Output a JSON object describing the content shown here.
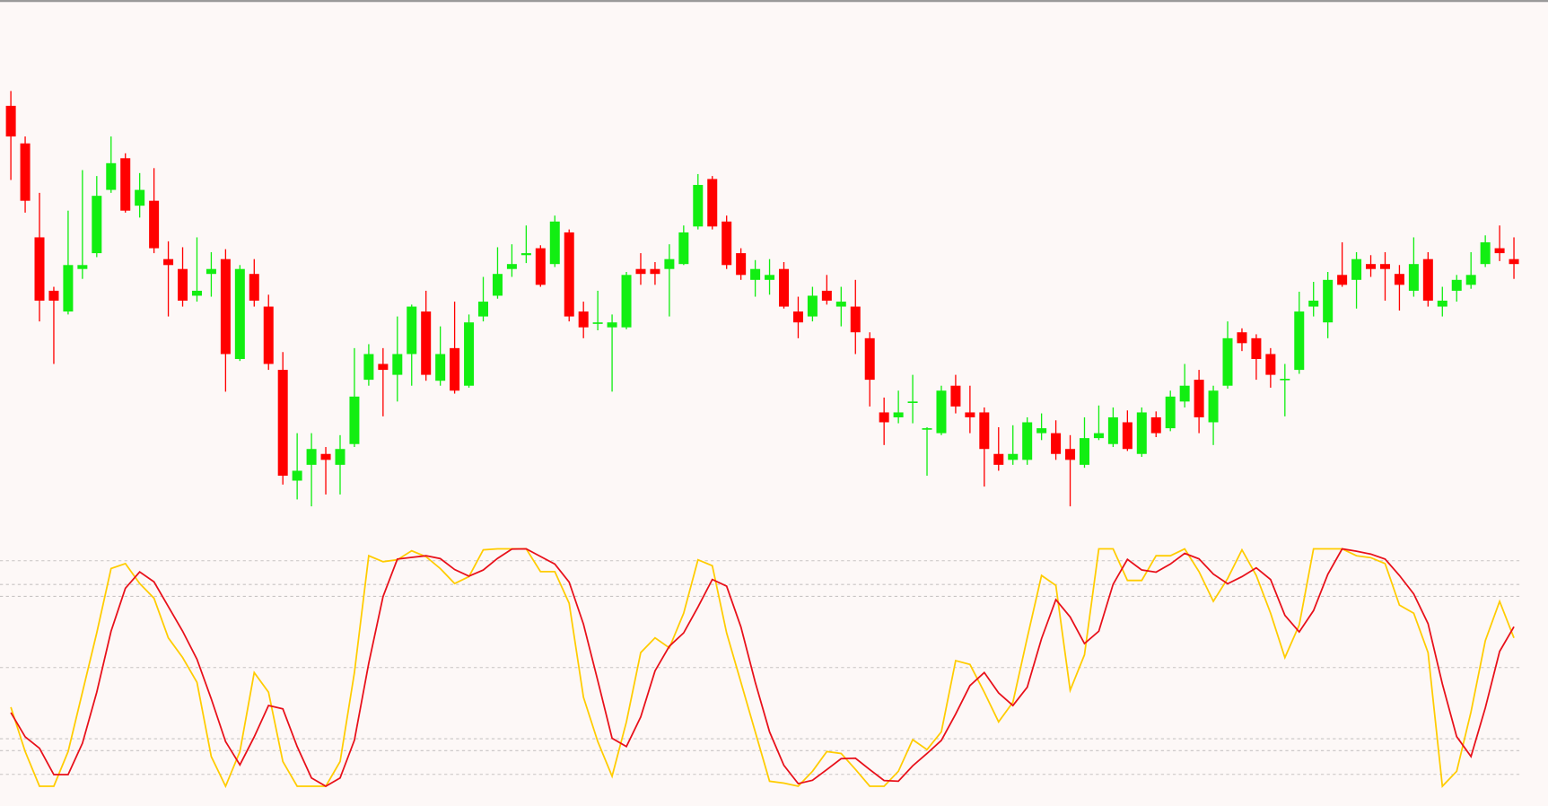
{
  "chart_data": [
    {
      "type": "candlestick",
      "up_color": "#12ee12",
      "down_color": "#ff0000",
      "ylim": [
        60,
        560
      ],
      "open": [
        493,
        455,
        360,
        306,
        285,
        328,
        344,
        408,
        440,
        392,
        397,
        338,
        328,
        301,
        323,
        338,
        237,
        323,
        290,
        226,
        114,
        130,
        141,
        130,
        151,
        216,
        232,
        221,
        242,
        285,
        215,
        248,
        210,
        280,
        301,
        328,
        342,
        349,
        333,
        365,
        285,
        274,
        269,
        269,
        328,
        328,
        328,
        333,
        371,
        419,
        376,
        344,
        317,
        317,
        328,
        285,
        280,
        306,
        290,
        290,
        258,
        183,
        178,
        194,
        167,
        162,
        210,
        183,
        183,
        141,
        135,
        135,
        162,
        162,
        146,
        130,
        157,
        151,
        173,
        141,
        178,
        167,
        194,
        216,
        173,
        210,
        264,
        258,
        242,
        216,
        226,
        290,
        274,
        322,
        317,
        333,
        333,
        323,
        306,
        338,
        290,
        306,
        312,
        333,
        349,
        338
      ],
      "high": [
        508,
        462,
        405,
        310,
        387,
        428,
        422,
        462,
        445,
        425,
        430,
        356,
        350,
        360,
        345,
        348,
        332,
        338,
        302,
        244,
        162,
        162,
        148,
        160,
        248,
        252,
        248,
        280,
        292,
        306,
        270,
        295,
        282,
        320,
        350,
        353,
        372,
        352,
        382,
        368,
        295,
        306,
        282,
        325,
        344,
        335,
        353,
        372,
        424,
        422,
        382,
        349,
        337,
        338,
        335,
        300,
        310,
        322,
        310,
        317,
        264,
        198,
        205,
        221,
        168,
        210,
        221,
        210,
        188,
        168,
        170,
        178,
        182,
        175,
        160,
        178,
        190,
        188,
        185,
        188,
        184,
        205,
        232,
        226,
        210,
        275,
        268,
        262,
        248,
        232,
        305,
        315,
        325,
        355,
        345,
        342,
        345,
        332,
        360,
        345,
        310,
        322,
        345,
        362,
        372,
        360
      ],
      "low": [
        418,
        385,
        275,
        232,
        282,
        318,
        340,
        405,
        385,
        380,
        344,
        280,
        290,
        295,
        300,
        204,
        235,
        290,
        226,
        110,
        95,
        88,
        100,
        100,
        148,
        210,
        179,
        194,
        210,
        215,
        210,
        202,
        208,
        275,
        298,
        320,
        334,
        310,
        330,
        275,
        258,
        266,
        204,
        267,
        312,
        312,
        280,
        332,
        368,
        368,
        328,
        317,
        300,
        302,
        288,
        258,
        275,
        292,
        270,
        242,
        189,
        150,
        172,
        172,
        119,
        160,
        182,
        162,
        108,
        124,
        130,
        130,
        155,
        135,
        88,
        127,
        155,
        148,
        144,
        138,
        158,
        164,
        188,
        162,
        150,
        207,
        245,
        216,
        208,
        179,
        222,
        280,
        258,
        310,
        288,
        320,
        296,
        286,
        300,
        290,
        280,
        295,
        308,
        330,
        336,
        318
      ],
      "close": [
        462,
        397,
        296,
        296,
        332,
        332,
        402,
        435,
        387,
        408,
        349,
        332,
        296,
        306,
        328,
        242,
        328,
        296,
        232,
        119,
        124,
        146,
        135,
        146,
        199,
        242,
        226,
        242,
        290,
        221,
        242,
        205,
        274,
        295,
        323,
        333,
        344,
        312,
        376,
        280,
        269,
        274,
        274,
        322,
        323,
        323,
        338,
        365,
        413,
        371,
        332,
        322,
        328,
        322,
        290,
        274,
        301,
        296,
        295,
        264,
        216,
        173,
        183,
        194,
        167,
        205,
        189,
        178,
        146,
        130,
        141,
        173,
        167,
        141,
        135,
        157,
        162,
        178,
        146,
        183,
        162,
        199,
        210,
        178,
        205,
        258,
        253,
        237,
        221,
        217,
        285,
        296,
        317,
        312,
        338,
        328,
        328,
        312,
        333,
        296,
        296,
        317,
        322,
        355,
        344,
        333
      ]
    },
    {
      "type": "line",
      "ylim": [
        0,
        100
      ],
      "levels": [
        5,
        15,
        20,
        50,
        80,
        85,
        95
      ],
      "series": [
        {
          "color": "#ffcc00",
          "values": [
            33.3,
            14.6,
            0,
            0,
            14.6,
            39.6,
            64.6,
            91.7,
            93.8,
            85.4,
            79.2,
            62.5,
            54.2,
            43.8,
            12.5,
            0,
            14.6,
            47.9,
            39.6,
            10.4,
            0,
            0,
            0,
            10.4,
            47.9,
            97.1,
            94.6,
            95.4,
            99.2,
            96.7,
            91.7,
            85.4,
            88.3,
            99.6,
            100,
            100,
            100,
            90.4,
            90.4,
            77.1,
            37.5,
            18.8,
            4.2,
            27.1,
            56.3,
            62.5,
            58.3,
            72.9,
            95.4,
            92.9,
            64.6,
            43.8,
            22.9,
            2.1,
            1.3,
            0,
            6.3,
            14.6,
            13.8,
            7.1,
            0,
            0,
            6.3,
            19.6,
            15.4,
            22.9,
            52.9,
            51.3,
            39.6,
            27.1,
            35.4,
            62.5,
            88.8,
            84.6,
            40.4,
            55.4,
            100,
            100,
            86.7,
            86.7,
            97.1,
            97.1,
            100,
            90.4,
            77.9,
            87.5,
            99.6,
            88.8,
            72.9,
            54.2,
            67.9,
            100,
            100,
            100,
            97.1,
            96.3,
            93.8,
            76.3,
            72.9,
            56.3,
            0,
            6.3,
            31.3,
            61.3,
            77.9,
            62.5
          ]
        },
        {
          "color": "#e8101a",
          "values": [
            31,
            20.8,
            16.0,
            4.9,
            4.9,
            18.1,
            39.6,
            65.3,
            83.4,
            90.3,
            86.1,
            75.7,
            65.3,
            53.5,
            36.8,
            18.8,
            9.0,
            20.8,
            34.0,
            32.6,
            16.7,
            3.5,
            0,
            3.5,
            19.4,
            51.8,
            79.9,
            95.7,
            96.4,
            97.1,
            95.9,
            91.3,
            88.5,
            91.1,
            96.0,
            99.9,
            100,
            96.8,
            93.6,
            86.0,
            68.3,
            44.5,
            20.2,
            16.7,
            29.2,
            48.6,
            59.0,
            64.6,
            75.5,
            87.1,
            84.3,
            67.1,
            43.8,
            22.9,
            8.8,
            1.1,
            2.5,
            7.0,
            11.6,
            11.8,
            7.0,
            2.4,
            2.1,
            8.6,
            13.8,
            19.3,
            30.4,
            42.4,
            47.9,
            39.3,
            34.0,
            41.7,
            62.2,
            78.6,
            71.3,
            60.1,
            65.3,
            85.1,
            95.6,
            91.1,
            90.2,
            93.6,
            98.1,
            95.8,
            89.4,
            85.3,
            88.3,
            92.0,
            87.1,
            72.0,
            65.0,
            74.0,
            89.3,
            100,
            99.0,
            97.8,
            95.7,
            88.8,
            81.0,
            68.5,
            43.1,
            20.9,
            12.5,
            33.0,
            56.8,
            67.2
          ]
        }
      ]
    }
  ]
}
